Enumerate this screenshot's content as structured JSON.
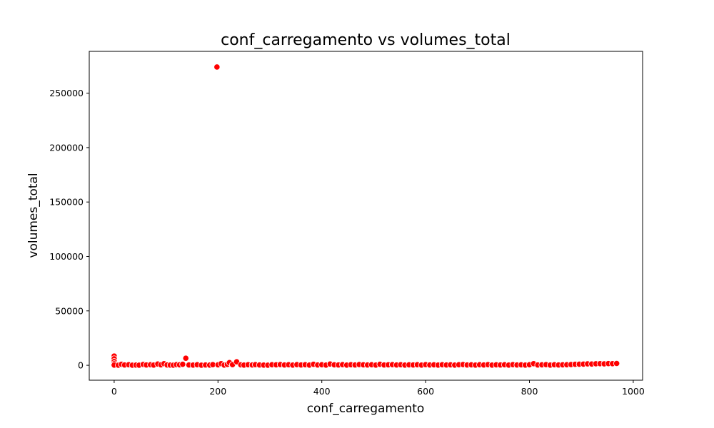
{
  "chart_data": {
    "type": "scatter",
    "title": "conf_carregamento vs volumes_total",
    "xlabel": "conf_carregamento",
    "ylabel": "volumes_total",
    "xlim": [
      -48,
      1018
    ],
    "ylim": [
      -13700,
      288400
    ],
    "xticks": [
      0,
      200,
      400,
      600,
      800,
      1000
    ],
    "yticks": [
      0,
      50000,
      100000,
      150000,
      200000,
      250000
    ],
    "grid": false,
    "legend": "none",
    "marker_color": "#ff0000",
    "marker_edge_color": "#ffffff",
    "points": [
      [
        0,
        8500
      ],
      [
        0,
        6000
      ],
      [
        0,
        3500
      ],
      [
        0,
        1500
      ],
      [
        0,
        200
      ],
      [
        8,
        100
      ],
      [
        14,
        900
      ],
      [
        20,
        300
      ],
      [
        28,
        500
      ],
      [
        35,
        100
      ],
      [
        42,
        200
      ],
      [
        48,
        100
      ],
      [
        56,
        800
      ],
      [
        62,
        300
      ],
      [
        70,
        500
      ],
      [
        76,
        200
      ],
      [
        84,
        1200
      ],
      [
        90,
        400
      ],
      [
        96,
        1500
      ],
      [
        102,
        300
      ],
      [
        108,
        200
      ],
      [
        114,
        100
      ],
      [
        120,
        600
      ],
      [
        126,
        400
      ],
      [
        132,
        900
      ],
      [
        138,
        6500
      ],
      [
        144,
        300
      ],
      [
        152,
        200
      ],
      [
        160,
        500
      ],
      [
        168,
        100
      ],
      [
        176,
        300
      ],
      [
        184,
        200
      ],
      [
        190,
        600
      ],
      [
        198,
        274000
      ],
      [
        200,
        400
      ],
      [
        206,
        1500
      ],
      [
        212,
        200
      ],
      [
        218,
        800
      ],
      [
        222,
        2500
      ],
      [
        228,
        600
      ],
      [
        236,
        3200
      ],
      [
        244,
        400
      ],
      [
        250,
        200
      ],
      [
        258,
        500
      ],
      [
        266,
        300
      ],
      [
        272,
        600
      ],
      [
        280,
        300
      ],
      [
        288,
        200
      ],
      [
        296,
        100
      ],
      [
        304,
        500
      ],
      [
        312,
        400
      ],
      [
        320,
        700
      ],
      [
        328,
        300
      ],
      [
        336,
        500
      ],
      [
        344,
        200
      ],
      [
        352,
        600
      ],
      [
        360,
        300
      ],
      [
        368,
        500
      ],
      [
        376,
        200
      ],
      [
        384,
        900
      ],
      [
        392,
        300
      ],
      [
        400,
        500
      ],
      [
        408,
        200
      ],
      [
        416,
        1200
      ],
      [
        424,
        400
      ],
      [
        432,
        300
      ],
      [
        440,
        600
      ],
      [
        448,
        200
      ],
      [
        456,
        500
      ],
      [
        464,
        300
      ],
      [
        472,
        700
      ],
      [
        480,
        400
      ],
      [
        488,
        300
      ],
      [
        496,
        500
      ],
      [
        504,
        200
      ],
      [
        512,
        900
      ],
      [
        520,
        300
      ],
      [
        528,
        400
      ],
      [
        536,
        600
      ],
      [
        544,
        300
      ],
      [
        552,
        500
      ],
      [
        560,
        200
      ],
      [
        568,
        400
      ],
      [
        576,
        300
      ],
      [
        584,
        500
      ],
      [
        592,
        200
      ],
      [
        600,
        600
      ],
      [
        608,
        300
      ],
      [
        616,
        400
      ],
      [
        624,
        200
      ],
      [
        632,
        500
      ],
      [
        640,
        300
      ],
      [
        648,
        400
      ],
      [
        656,
        200
      ],
      [
        664,
        500
      ],
      [
        672,
        700
      ],
      [
        680,
        300
      ],
      [
        688,
        400
      ],
      [
        696,
        200
      ],
      [
        704,
        500
      ],
      [
        712,
        300
      ],
      [
        720,
        600
      ],
      [
        728,
        200
      ],
      [
        736,
        400
      ],
      [
        744,
        300
      ],
      [
        752,
        500
      ],
      [
        760,
        200
      ],
      [
        768,
        600
      ],
      [
        776,
        300
      ],
      [
        784,
        400
      ],
      [
        792,
        200
      ],
      [
        800,
        500
      ],
      [
        808,
        1500
      ],
      [
        816,
        300
      ],
      [
        824,
        400
      ],
      [
        832,
        600
      ],
      [
        840,
        200
      ],
      [
        848,
        500
      ],
      [
        856,
        300
      ],
      [
        864,
        400
      ],
      [
        872,
        500
      ],
      [
        880,
        700
      ],
      [
        888,
        900
      ],
      [
        896,
        1000
      ],
      [
        904,
        1100
      ],
      [
        912,
        1300
      ],
      [
        920,
        1200
      ],
      [
        928,
        1400
      ],
      [
        936,
        1500
      ],
      [
        944,
        1300
      ],
      [
        952,
        1600
      ],
      [
        960,
        1500
      ],
      [
        968,
        1700
      ]
    ]
  }
}
